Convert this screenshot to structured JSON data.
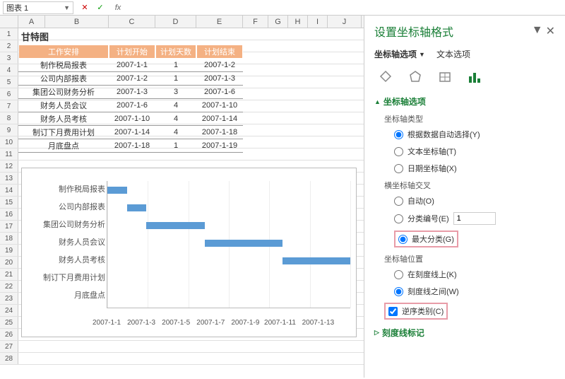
{
  "formula_bar": {
    "name_box": "图表 1",
    "fx": "fx"
  },
  "columns": [
    {
      "l": "A",
      "w": 38
    },
    {
      "l": "B",
      "w": 90
    },
    {
      "l": "C",
      "w": 66
    },
    {
      "l": "D",
      "w": 58
    },
    {
      "l": "E",
      "w": 66
    },
    {
      "l": "F",
      "w": 36
    },
    {
      "l": "G",
      "w": 28
    },
    {
      "l": "H",
      "w": 28
    },
    {
      "l": "I",
      "w": 28
    },
    {
      "l": "J",
      "w": 48
    }
  ],
  "row_count": 28,
  "table": {
    "title": "甘特图",
    "headers": [
      "工作安排",
      "计划开始",
      "计划天数",
      "计划结束"
    ],
    "rows": [
      [
        "制作税局报表",
        "2007-1-1",
        "1",
        "2007-1-2"
      ],
      [
        "公司内部报表",
        "2007-1-2",
        "1",
        "2007-1-3"
      ],
      [
        "集团公司财务分析",
        "2007-1-3",
        "3",
        "2007-1-6"
      ],
      [
        "财务人员会议",
        "2007-1-6",
        "4",
        "2007-1-10"
      ],
      [
        "财务人员考核",
        "2007-1-10",
        "4",
        "2007-1-14"
      ],
      [
        "制订下月费用计划",
        "2007-1-14",
        "4",
        "2007-1-18"
      ],
      [
        "月底盘点",
        "2007-1-18",
        "1",
        "2007-1-19"
      ]
    ],
    "header_bg": "#f4b183",
    "header_color": "#ffffff"
  },
  "chart": {
    "type": "bar",
    "y_categories": [
      "制作税局报表",
      "公司内部报表",
      "集团公司财务分析",
      "财务人员会议",
      "财务人员考核",
      "制订下月费用计划",
      "月底盘点"
    ],
    "x_ticks": [
      "2007-1-1",
      "2007-1-3",
      "2007-1-5",
      "2007-1-7",
      "2007-1-9",
      "2007-1-11",
      "2007-1-13"
    ],
    "bars": [
      {
        "start_pct": 0,
        "width_pct": 8
      },
      {
        "start_pct": 8,
        "width_pct": 8
      },
      {
        "start_pct": 16,
        "width_pct": 24
      },
      {
        "start_pct": 40,
        "width_pct": 32
      },
      {
        "start_pct": 72,
        "width_pct": 28
      },
      {
        "start_pct": 100,
        "width_pct": 0
      },
      {
        "start_pct": 100,
        "width_pct": 0
      }
    ],
    "bar_color": "#5b9bd5",
    "grid_color": "#eeeeee"
  },
  "panel": {
    "title": "设置坐标轴格式",
    "tabs": {
      "axis_options": "坐标轴选项",
      "text_options": "文本选项"
    },
    "section_axis": "坐标轴选项",
    "axis_type_label": "坐标轴类型",
    "axis_type": {
      "auto": "根据数据自动选择(Y)",
      "text": "文本坐标轴(T)",
      "date": "日期坐标轴(X)"
    },
    "cross_label": "横坐标轴交叉",
    "cross": {
      "auto": "自动(O)",
      "category": "分类编号(E)",
      "max": "最大分类(G)"
    },
    "cross_value": "1",
    "position_label": "坐标轴位置",
    "position": {
      "on_tick": "在刻度线上(K)",
      "between": "刻度线之间(W)"
    },
    "reverse": "逆序类别(C)",
    "tick_marks": "刻度线标记"
  }
}
